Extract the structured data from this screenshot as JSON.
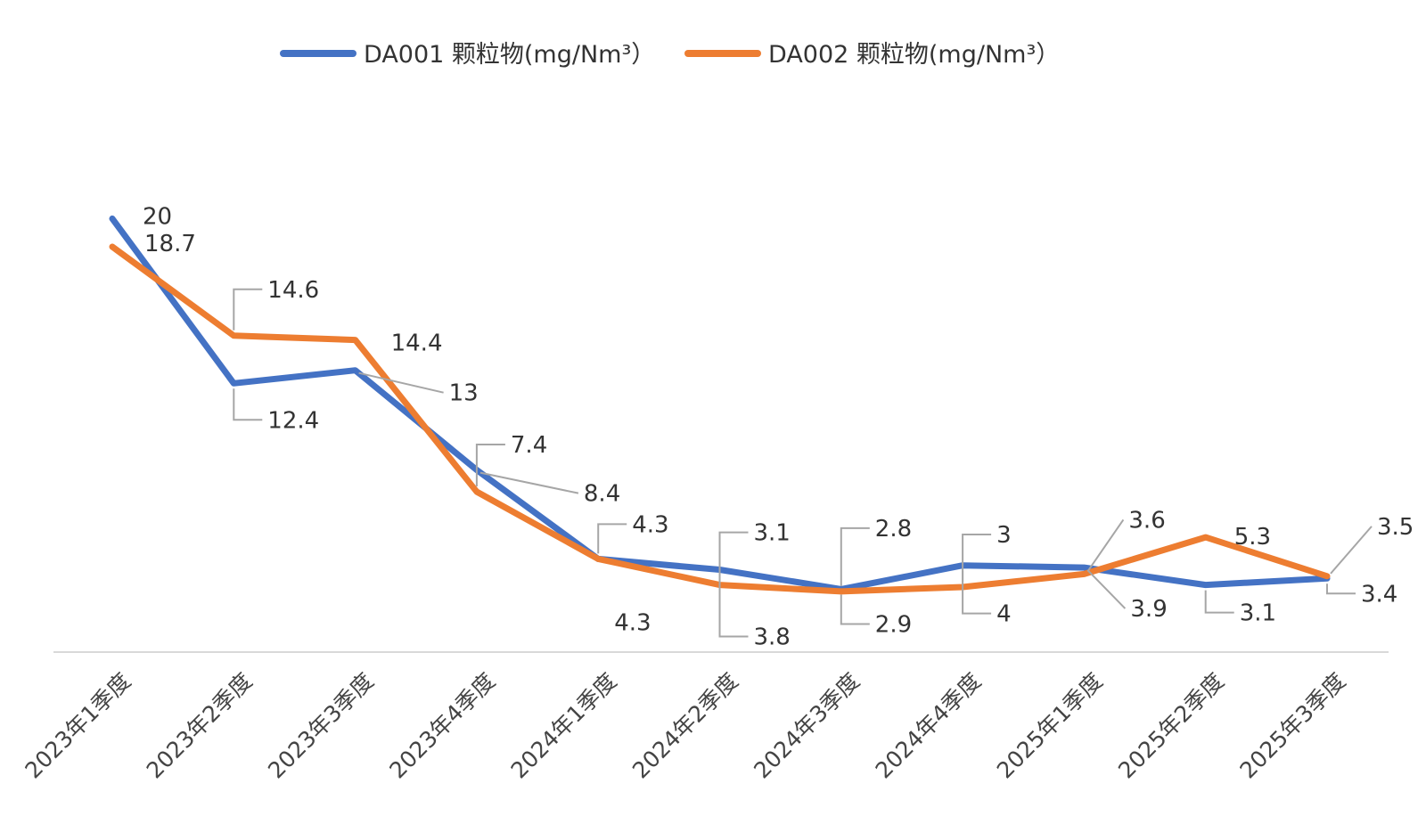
{
  "chart_data": {
    "type": "line",
    "title": "",
    "xlabel": "",
    "ylabel": "",
    "ylim": [
      0,
      22
    ],
    "grid": false,
    "legend": "top-center",
    "categories": [
      "2023年1季度",
      "2023年2季度",
      "2023年3季度",
      "2023年4季度",
      "2024年1季度",
      "2024年2季度",
      "2024年3季度",
      "2024年4季度",
      "2025年1季度",
      "2025年2季度",
      "2025年3季度"
    ],
    "series": [
      {
        "name": "DA001 颗粒物(mg/Nm³）",
        "color": "#4472c4",
        "values": [
          20,
          12.4,
          13,
          8.4,
          4.3,
          3.8,
          2.9,
          4,
          3.9,
          3.1,
          3.4
        ]
      },
      {
        "name": "DA002 颗粒物(mg/Nm³）",
        "color": "#ed7d31",
        "values": [
          18.7,
          14.6,
          14.4,
          7.4,
          4.3,
          3.1,
          2.8,
          3,
          3.6,
          5.3,
          3.5
        ]
      }
    ]
  }
}
